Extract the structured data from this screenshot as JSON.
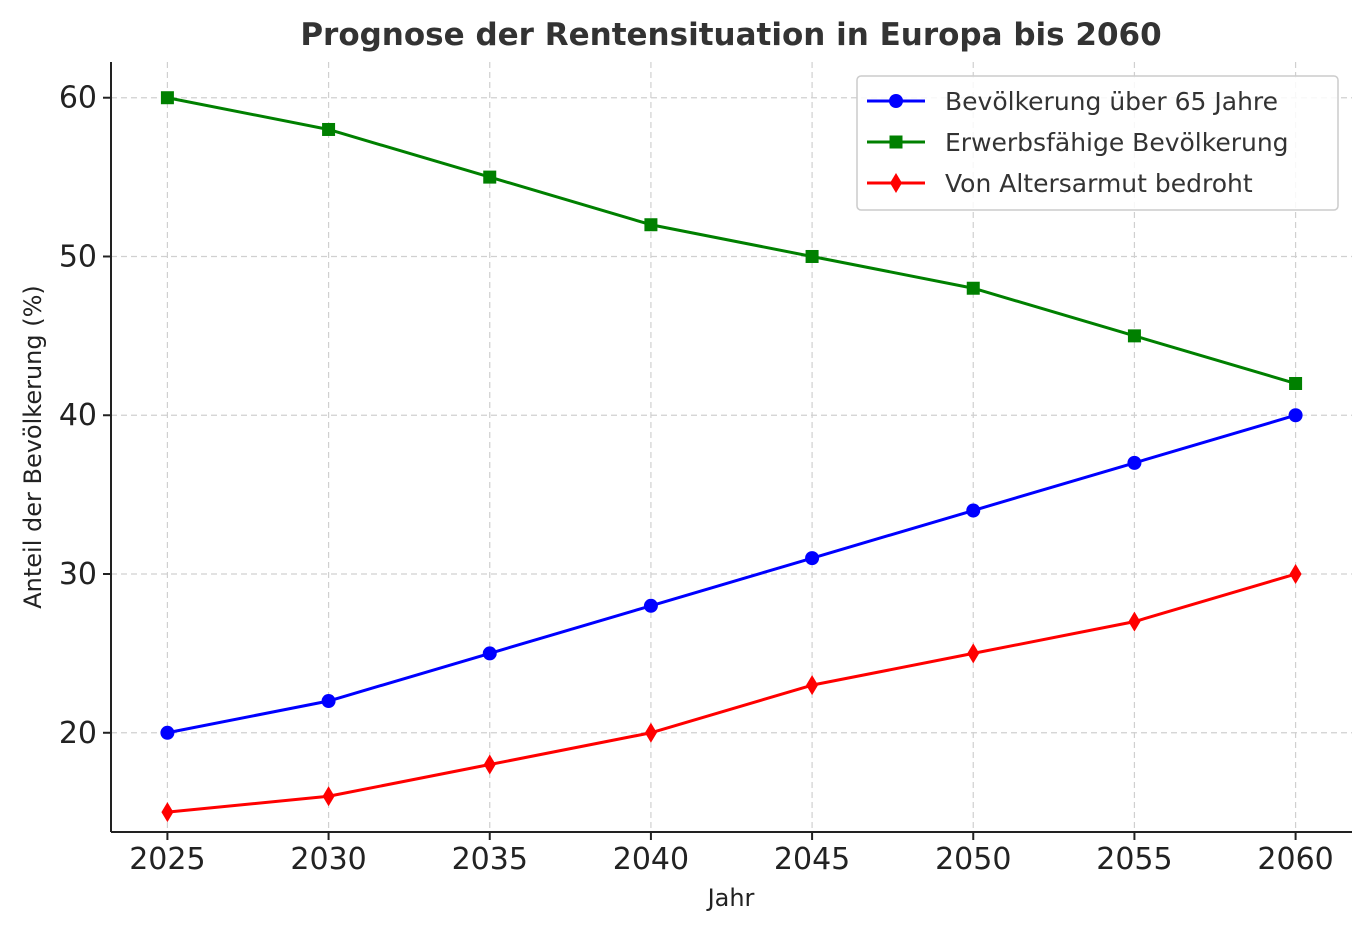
{
  "chart_data": {
    "type": "line",
    "title": "Prognose der Rentensituation in Europa bis 2060",
    "xlabel": "Jahr",
    "ylabel": "Anteil der Bevölkerung (%)",
    "x": [
      2025,
      2030,
      2035,
      2040,
      2045,
      2050,
      2055,
      2060
    ],
    "xlim": [
      2023.25,
      2061.75
    ],
    "ylim": [
      13.75,
      62.25
    ],
    "yticks": [
      20,
      30,
      40,
      50,
      60
    ],
    "grid": true,
    "legend_position": "top-right",
    "series": [
      {
        "name": "Bevölkerung über 65 Jahre",
        "color": "#0000ff",
        "marker": "circle",
        "values": [
          20,
          22,
          25,
          28,
          31,
          34,
          37,
          40
        ]
      },
      {
        "name": "Erwerbsfähige Bevölkerung",
        "color": "#008000",
        "marker": "square",
        "values": [
          60,
          58,
          55,
          52,
          50,
          48,
          45,
          42
        ]
      },
      {
        "name": "Von Altersarmut bedroht",
        "color": "#ff0000",
        "marker": "diamond",
        "values": [
          15,
          16,
          18,
          20,
          23,
          25,
          27,
          30
        ]
      }
    ]
  }
}
